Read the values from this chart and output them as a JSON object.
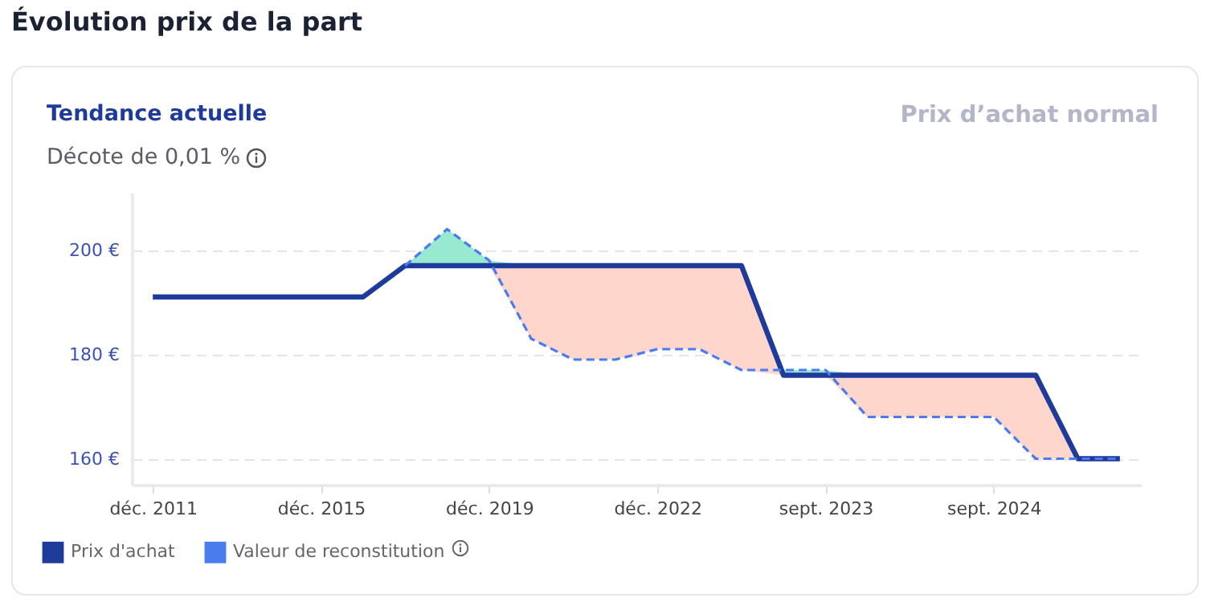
{
  "chart_data": {
    "type": "line",
    "title": "Évolution prix de la part",
    "subtitle": "Tendance actuelle",
    "annotations": [
      "Prix d’achat normal",
      "Décote de 0,01 %"
    ],
    "categories": [
      "déc. 2011",
      null,
      null,
      null,
      "déc. 2015",
      null,
      null,
      null,
      "déc. 2019",
      null,
      null,
      null,
      "déc. 2022",
      null,
      null,
      null,
      "sept. 2023",
      null,
      null,
      null,
      "sept. 2024",
      null,
      null,
      null
    ],
    "series": [
      {
        "name": "Prix d'achat",
        "color": "#1e3a9a",
        "line_style": "solid",
        "values": [
          191,
          191,
          191,
          191,
          191,
          191,
          197,
          197,
          197,
          197,
          197,
          197,
          197,
          197,
          197,
          176,
          176,
          176,
          176,
          176,
          176,
          176,
          160,
          160
        ]
      },
      {
        "name": "Valeur de reconstitution",
        "color": "#4a7cf0",
        "line_style": "dashed",
        "values": [
          null,
          null,
          null,
          null,
          null,
          null,
          197,
          204,
          198,
          183,
          179,
          179,
          181,
          181,
          177,
          177,
          177,
          168,
          168,
          168,
          168,
          160,
          160,
          160
        ]
      }
    ],
    "ylim": [
      155,
      211
    ],
    "yticks": [
      {
        "value": 160,
        "label": "160 €"
      },
      {
        "value": 180,
        "label": "180 €"
      },
      {
        "value": 200,
        "label": "200 €"
      }
    ],
    "grid": "y",
    "legend": "bottom left",
    "marker": "none"
  }
}
